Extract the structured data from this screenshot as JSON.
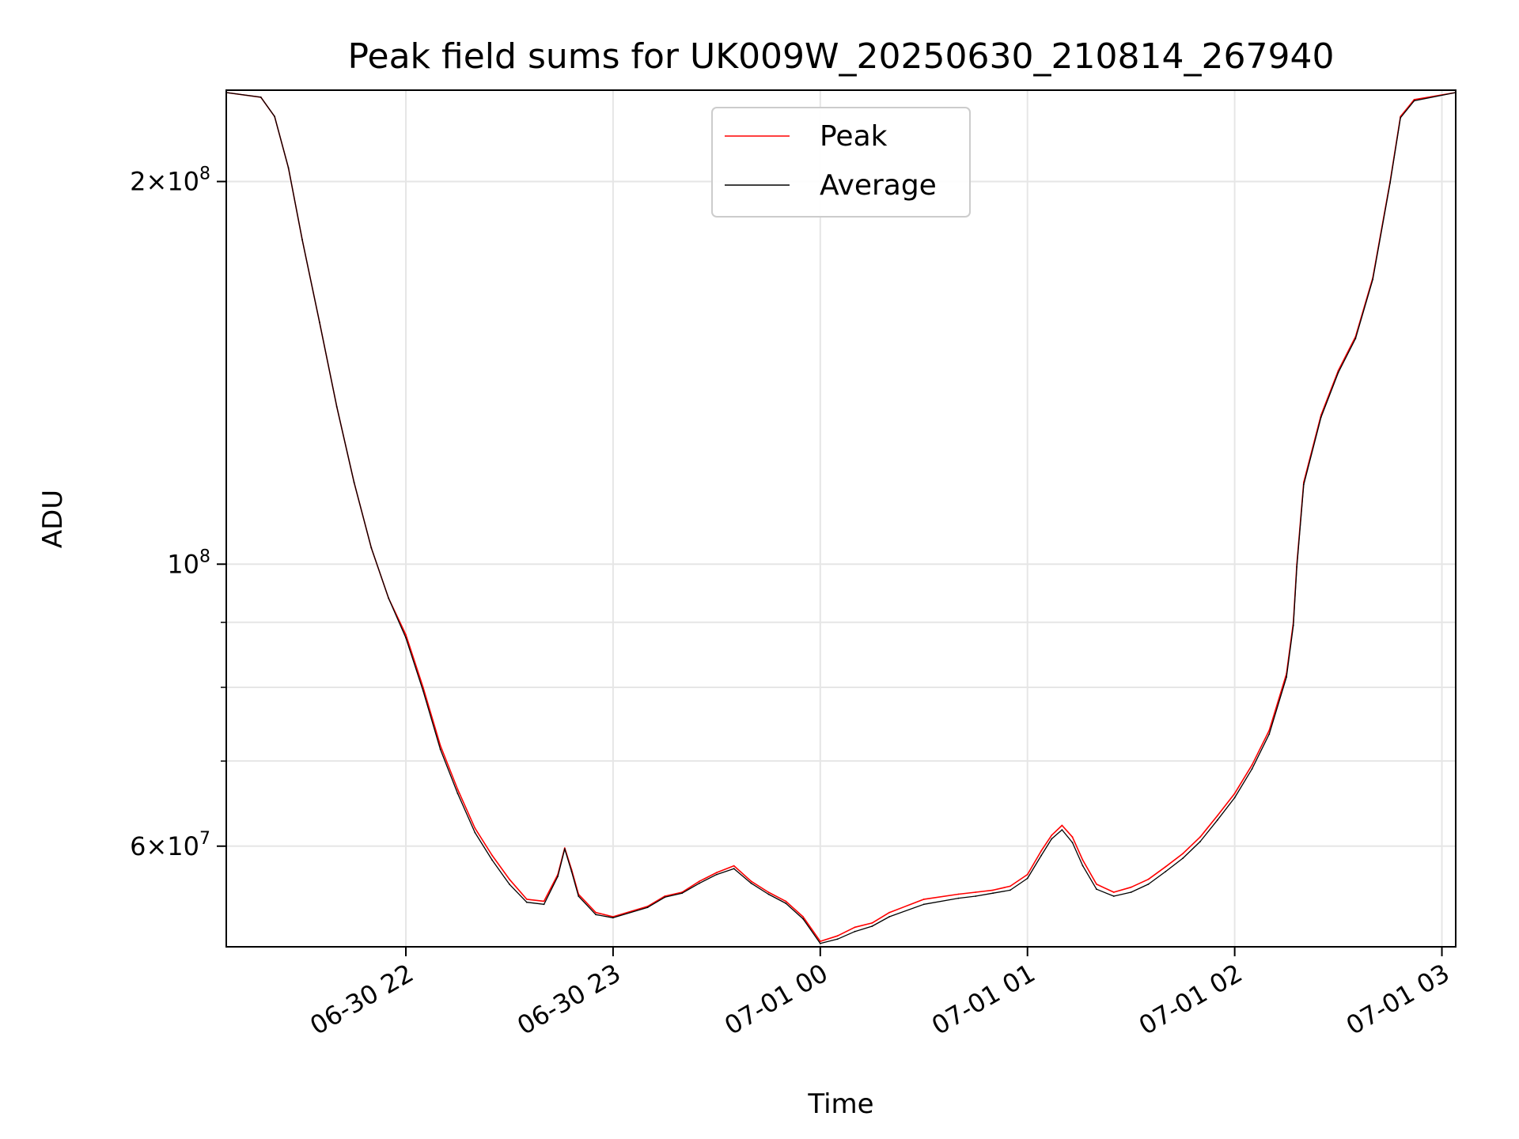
{
  "chart_data": {
    "type": "line",
    "title": "Peak field sums for UK009W_20250630_210814_267940",
    "xlabel": "Time",
    "ylabel": "ADU",
    "yscale": "log",
    "xlim": [
      "2025-06-30 21:08",
      "2025-07-01 03:04"
    ],
    "ylim": [
      50000000,
      236000000
    ],
    "grid": true,
    "legend_position": "top-center",
    "x_ticks": [
      {
        "value": "2025-06-30 22:00",
        "label": "06-30 22"
      },
      {
        "value": "2025-06-30 23:00",
        "label": "06-30 23"
      },
      {
        "value": "2025-07-01 00:00",
        "label": "07-01 00"
      },
      {
        "value": "2025-07-01 01:00",
        "label": "07-01 01"
      },
      {
        "value": "2025-07-01 02:00",
        "label": "07-01 02"
      },
      {
        "value": "2025-07-01 03:00",
        "label": "07-01 03"
      }
    ],
    "y_ticks_major": [
      {
        "value": 200000000,
        "base": "2",
        "mant": "8"
      },
      {
        "value": 100000000,
        "base": "",
        "mant": "8"
      },
      {
        "value": 60000000,
        "base": "6",
        "mant": "7"
      }
    ],
    "y_ticks_minor": [
      70000000,
      80000000,
      90000000
    ],
    "tick_base_text": "10",
    "tick_times_text": "×",
    "series": [
      {
        "name": "Peak",
        "color": "#ff0000",
        "x": [
          "2025-06-30 21:08",
          "2025-06-30 21:18",
          "2025-06-30 21:22",
          "2025-06-30 21:26",
          "2025-06-30 21:30",
          "2025-06-30 21:35",
          "2025-06-30 21:40",
          "2025-06-30 21:45",
          "2025-06-30 21:50",
          "2025-06-30 21:55",
          "2025-06-30 22:00",
          "2025-06-30 22:05",
          "2025-06-30 22:10",
          "2025-06-30 22:15",
          "2025-06-30 22:20",
          "2025-06-30 22:25",
          "2025-06-30 22:30",
          "2025-06-30 22:35",
          "2025-06-30 22:40",
          "2025-06-30 22:44",
          "2025-06-30 22:46",
          "2025-06-30 22:48",
          "2025-06-30 22:50",
          "2025-06-30 22:55",
          "2025-06-30 23:00",
          "2025-06-30 23:10",
          "2025-06-30 23:15",
          "2025-06-30 23:20",
          "2025-06-30 23:25",
          "2025-06-30 23:30",
          "2025-06-30 23:35",
          "2025-06-30 23:40",
          "2025-06-30 23:45",
          "2025-06-30 23:50",
          "2025-06-30 23:55",
          "2025-07-01 00:00",
          "2025-07-01 00:05",
          "2025-07-01 00:10",
          "2025-07-01 00:15",
          "2025-07-01 00:20",
          "2025-07-01 00:30",
          "2025-07-01 00:40",
          "2025-07-01 00:45",
          "2025-07-01 00:50",
          "2025-07-01 00:55",
          "2025-07-01 01:00",
          "2025-07-01 01:04",
          "2025-07-01 01:07",
          "2025-07-01 01:10",
          "2025-07-01 01:13",
          "2025-07-01 01:16",
          "2025-07-01 01:20",
          "2025-07-01 01:25",
          "2025-07-01 01:30",
          "2025-07-01 01:35",
          "2025-07-01 01:40",
          "2025-07-01 01:45",
          "2025-07-01 01:50",
          "2025-07-01 01:55",
          "2025-07-01 02:00",
          "2025-07-01 02:05",
          "2025-07-01 02:10",
          "2025-07-01 02:15",
          "2025-07-01 02:17",
          "2025-07-01 02:18",
          "2025-07-01 02:20",
          "2025-07-01 02:25",
          "2025-07-01 02:30",
          "2025-07-01 02:35",
          "2025-07-01 02:40",
          "2025-07-01 02:45",
          "2025-07-01 02:48",
          "2025-07-01 02:52",
          "2025-07-01 03:04"
        ],
        "y": [
          235000000,
          233000000,
          225000000,
          205000000,
          180000000,
          155000000,
          133000000,
          116000000,
          103000000,
          94000000,
          88000000,
          80000000,
          72000000,
          66500000,
          62000000,
          59000000,
          56500000,
          54500000,
          54300000,
          57000000,
          59800000,
          57500000,
          55000000,
          53200000,
          52800000,
          53800000,
          54800000,
          55200000,
          56300000,
          57200000,
          57900000,
          56300000,
          55200000,
          54300000,
          52800000,
          50500000,
          51000000,
          51800000,
          52200000,
          53200000,
          54500000,
          55000000,
          55200000,
          55400000,
          55800000,
          57000000,
          59500000,
          61200000,
          62300000,
          61000000,
          58500000,
          56000000,
          55200000,
          55700000,
          56500000,
          57800000,
          59200000,
          61000000,
          63400000,
          66000000,
          69500000,
          74000000,
          82000000,
          90000000,
          100000000,
          116000000,
          131000000,
          142000000,
          151000000,
          168000000,
          200000000,
          225000000,
          232000000,
          235000000
        ]
      },
      {
        "name": "Average",
        "color": "#000000",
        "x": [
          "2025-06-30 21:08",
          "2025-06-30 21:18",
          "2025-06-30 21:22",
          "2025-06-30 21:26",
          "2025-06-30 21:30",
          "2025-06-30 21:35",
          "2025-06-30 21:40",
          "2025-06-30 21:45",
          "2025-06-30 21:50",
          "2025-06-30 21:55",
          "2025-06-30 22:00",
          "2025-06-30 22:05",
          "2025-06-30 22:10",
          "2025-06-30 22:15",
          "2025-06-30 22:20",
          "2025-06-30 22:25",
          "2025-06-30 22:30",
          "2025-06-30 22:35",
          "2025-06-30 22:40",
          "2025-06-30 22:44",
          "2025-06-30 22:46",
          "2025-06-30 22:48",
          "2025-06-30 22:50",
          "2025-06-30 22:55",
          "2025-06-30 23:00",
          "2025-06-30 23:10",
          "2025-06-30 23:15",
          "2025-06-30 23:20",
          "2025-06-30 23:25",
          "2025-06-30 23:30",
          "2025-06-30 23:35",
          "2025-06-30 23:40",
          "2025-06-30 23:45",
          "2025-06-30 23:50",
          "2025-06-30 23:55",
          "2025-07-01 00:00",
          "2025-07-01 00:05",
          "2025-07-01 00:10",
          "2025-07-01 00:15",
          "2025-07-01 00:20",
          "2025-07-01 00:30",
          "2025-07-01 00:40",
          "2025-07-01 00:45",
          "2025-07-01 00:50",
          "2025-07-01 00:55",
          "2025-07-01 01:00",
          "2025-07-01 01:04",
          "2025-07-01 01:07",
          "2025-07-01 01:10",
          "2025-07-01 01:13",
          "2025-07-01 01:16",
          "2025-07-01 01:20",
          "2025-07-01 01:25",
          "2025-07-01 01:30",
          "2025-07-01 01:35",
          "2025-07-01 01:40",
          "2025-07-01 01:45",
          "2025-07-01 01:50",
          "2025-07-01 01:55",
          "2025-07-01 02:00",
          "2025-07-01 02:05",
          "2025-07-01 02:10",
          "2025-07-01 02:15",
          "2025-07-01 02:17",
          "2025-07-01 02:18",
          "2025-07-01 02:20",
          "2025-07-01 02:25",
          "2025-07-01 02:30",
          "2025-07-01 02:35",
          "2025-07-01 02:40",
          "2025-07-01 02:45",
          "2025-07-01 02:48",
          "2025-07-01 02:52",
          "2025-07-01 03:04"
        ],
        "y": [
          235000000,
          233000000,
          225000000,
          205000000,
          180000000,
          155000000,
          133000000,
          116000000,
          103000000,
          94000000,
          87500000,
          79500000,
          71500000,
          66000000,
          61500000,
          58500000,
          56000000,
          54200000,
          54000000,
          56800000,
          59700000,
          57300000,
          54800000,
          53000000,
          52700000,
          53700000,
          54700000,
          55100000,
          56100000,
          57000000,
          57600000,
          56100000,
          55000000,
          54100000,
          52600000,
          50300000,
          50700000,
          51400000,
          51900000,
          52800000,
          54000000,
          54600000,
          54800000,
          55100000,
          55400000,
          56600000,
          59000000,
          60800000,
          61800000,
          60400000,
          57900000,
          55500000,
          54800000,
          55200000,
          56000000,
          57300000,
          58700000,
          60500000,
          62900000,
          65500000,
          69000000,
          73500000,
          81500000,
          89500000,
          99500000,
          115500000,
          130500000,
          141500000,
          150500000,
          167500000,
          199500000,
          224500000,
          231500000,
          235000000
        ]
      }
    ]
  }
}
